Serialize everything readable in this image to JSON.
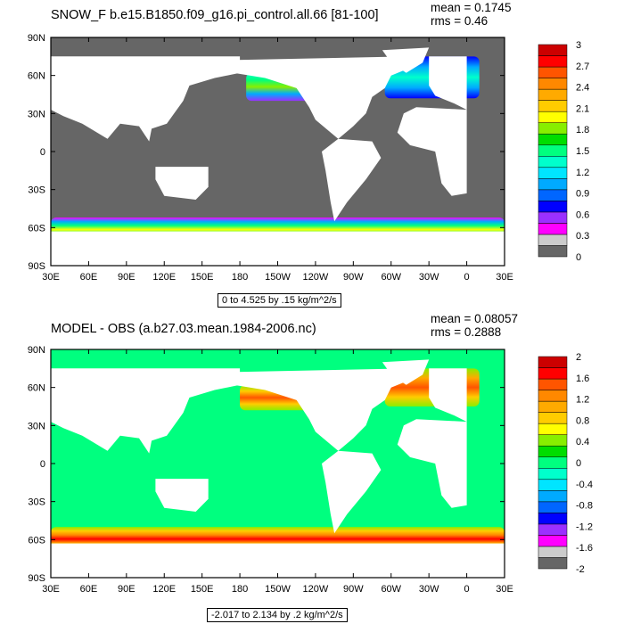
{
  "colors": {
    "land": "#ffffff",
    "colorbar_top": [
      "#666666",
      "#cccccc",
      "#ff00ff",
      "#9b30ff",
      "#0000ff",
      "#0066ff",
      "#00aaff",
      "#00e5ff",
      "#00ffcc",
      "#00ff7f",
      "#00dd00",
      "#88ee00",
      "#ffff00",
      "#ffcc00",
      "#ffaa00",
      "#ff8800",
      "#ff5500",
      "#ff0000",
      "#cc0000"
    ],
    "colorbar_bottom": [
      "#666666",
      "#cccccc",
      "#ff00ff",
      "#9b30ff",
      "#0000ff",
      "#0066ff",
      "#00aaff",
      "#00e5ff",
      "#00ffcc",
      "#00ff7f",
      "#00dd00",
      "#88ee00",
      "#ffff00",
      "#ffcc00",
      "#ffaa00",
      "#ff8800",
      "#ff5500",
      "#ff0000",
      "#cc0000"
    ]
  },
  "chart_data": [
    {
      "type": "heatmap",
      "title": "SNOW_F b.e15.B1850.f09_g16.pi_control.all.66 [81-100]",
      "stats": {
        "mean": "mean = 0.1745",
        "rms": "rms = 0.46"
      },
      "range_label": "0 to 4.525 by .15 kg/m^2/s",
      "lat_ticks": [
        "90N",
        "60N",
        "30N",
        "0",
        "30S",
        "60S",
        "90S"
      ],
      "lon_ticks": [
        "30E",
        "60E",
        "90E",
        "120E",
        "150E",
        "180",
        "150W",
        "120W",
        "90W",
        "60W",
        "30W",
        "0",
        "30E"
      ],
      "colorbar_labels": [
        "0",
        "0.3",
        "0.6",
        "0.9",
        "1.2",
        "1.5",
        "1.8",
        "2.1",
        "2.4",
        "2.7",
        "3"
      ],
      "background_level": "0",
      "features": [
        {
          "region": "North Pacific storm track",
          "peak": 1.8
        },
        {
          "region": "North Atlantic storm track",
          "peak": 1.5
        },
        {
          "region": "Southern Ocean band",
          "peak": 1.5
        }
      ]
    },
    {
      "type": "heatmap",
      "title": "MODEL - OBS (a.b27.03.mean.1984-2006.nc)",
      "stats": {
        "mean": "mean = 0.08057",
        "rms": "rms = 0.2888"
      },
      "range_label": "-2.017 to 2.134 by .2 kg/m^2/s",
      "lat_ticks": [
        "90N",
        "60N",
        "30N",
        "0",
        "30S",
        "60S",
        "90S"
      ],
      "lon_ticks": [
        "30E",
        "60E",
        "90E",
        "120E",
        "150E",
        "180",
        "150W",
        "120W",
        "90W",
        "60W",
        "30W",
        "0",
        "30E"
      ],
      "colorbar_labels": [
        "-2",
        "-1.6",
        "-1.2",
        "-0.8",
        "-0.4",
        "0",
        "0.4",
        "0.8",
        "1.2",
        "1.6",
        "2"
      ],
      "background_level": "0",
      "features": [
        {
          "region": "North Pacific storm track",
          "peak": 1.2
        },
        {
          "region": "North Atlantic storm track",
          "peak": 1.6
        },
        {
          "region": "Southern Ocean band",
          "peak": 2.0
        }
      ]
    }
  ]
}
